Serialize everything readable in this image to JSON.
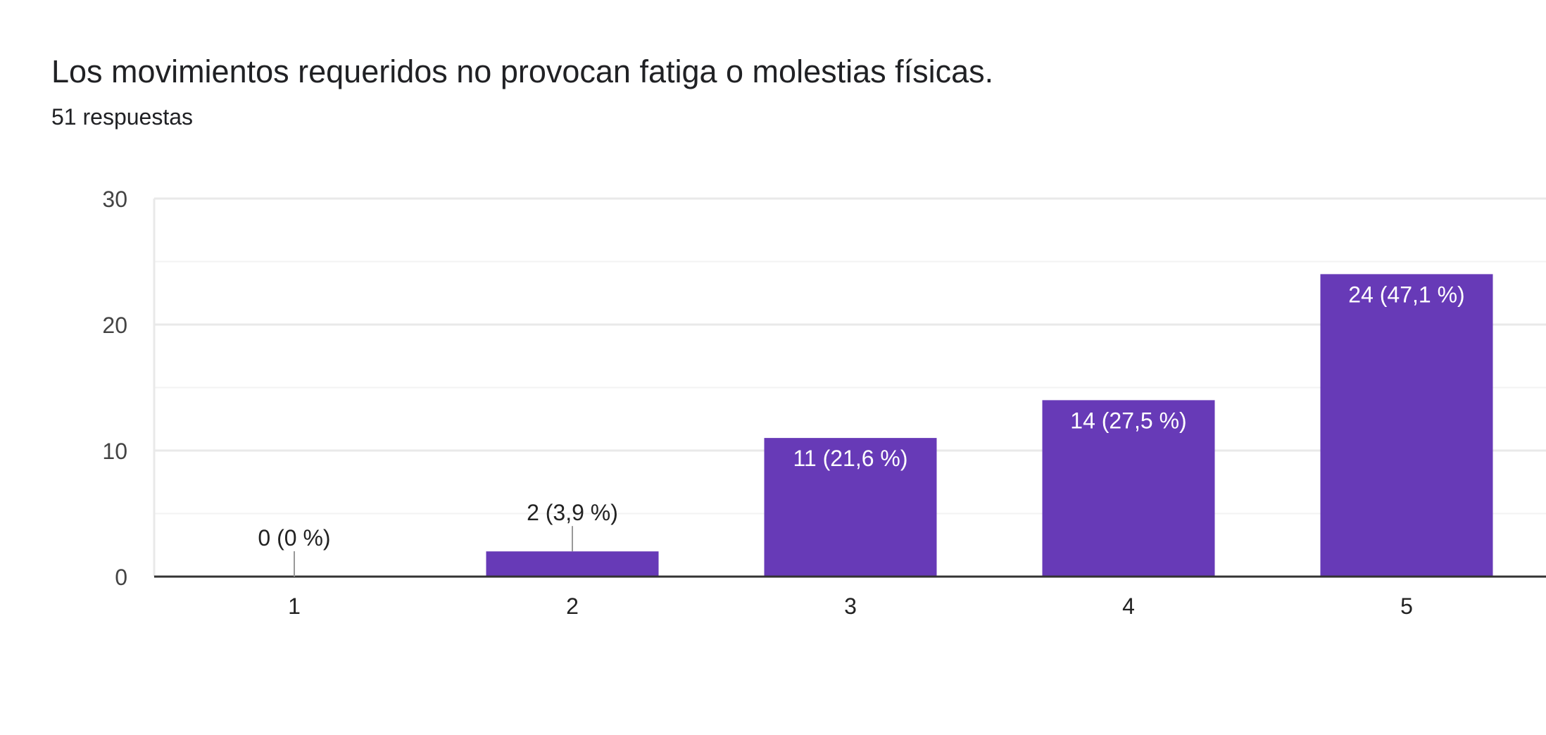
{
  "title": "Los movimientos requeridos no provocan fatiga o molestias físicas.",
  "subtitle": "51 respuestas",
  "colors": {
    "bar": "#673ab7",
    "grid": "#e9e9e9",
    "axis": "#333333",
    "leader": "#999999"
  },
  "chart_data": {
    "type": "bar",
    "title": "Los movimientos requeridos no provocan fatiga o molestias físicas.",
    "subtitle": "51 respuestas",
    "categories": [
      "1",
      "2",
      "3",
      "4",
      "5"
    ],
    "values": [
      0,
      2,
      11,
      14,
      24
    ],
    "data_labels": [
      "0 (0 %)",
      "2 (3,9 %)",
      "11 (21,6 %)",
      "14 (27,5 %)",
      "24 (47,1 %)"
    ],
    "ylim": [
      0,
      30
    ],
    "yticks": [
      0,
      10,
      20,
      30
    ],
    "minor_gridlines": [
      5,
      15,
      25
    ],
    "xlabel": "",
    "ylabel": "",
    "grid": true,
    "legend": "none"
  }
}
